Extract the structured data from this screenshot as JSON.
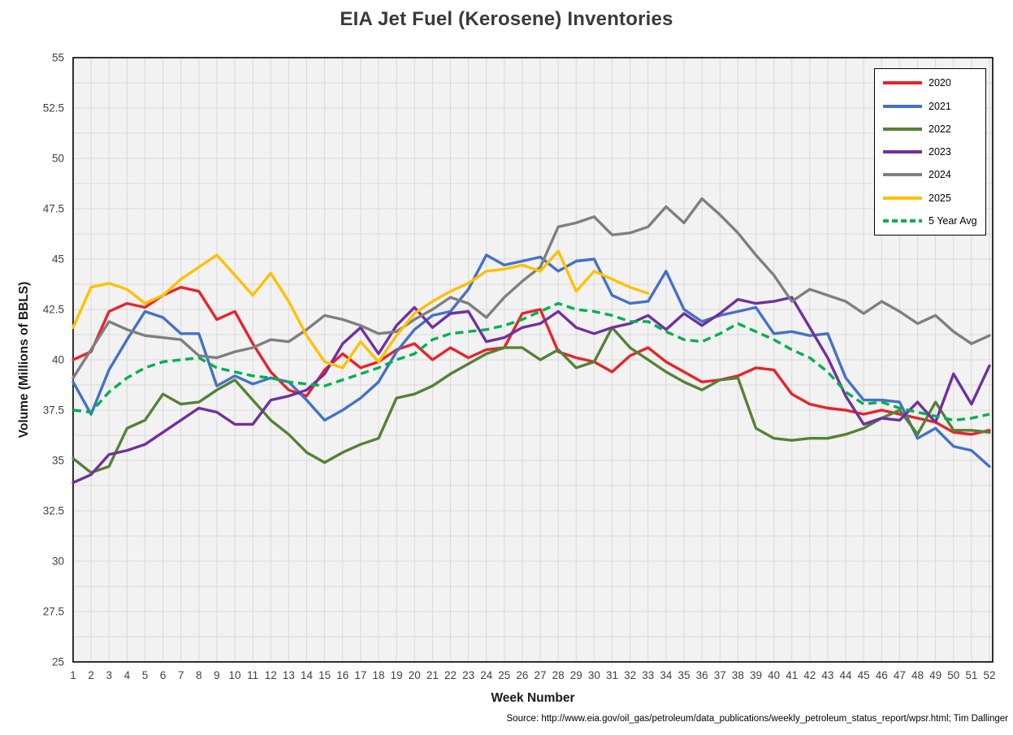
{
  "title": "EIA Jet Fuel (Kerosene) Inventories",
  "source_note": "Source: http://www.eia.gov/oil_gas/petroleum/data_publications/weekly_petroleum_status_report/wpsr.html; Tim Dallinger",
  "colors": {
    "plot_background": "#f2f2f2",
    "gridline": "#d9d9d9",
    "plot_border": "#000000",
    "tick_text": "#404040",
    "title_text": "#3a3a3a"
  },
  "chart_data": {
    "type": "line",
    "title": "EIA Jet Fuel (Kerosene) Inventories",
    "xlabel": "Week Number",
    "ylabel": "Volume (Millions of BBLS)",
    "ylim": [
      25,
      55
    ],
    "y_ticks": [
      25,
      27.5,
      30,
      32.5,
      35,
      37.5,
      40,
      42.5,
      45,
      47.5,
      50,
      52.5,
      55
    ],
    "minor_grid_step": 1.25,
    "grid": true,
    "legend_position": "top-right",
    "x": [
      1,
      2,
      3,
      4,
      5,
      6,
      7,
      8,
      9,
      10,
      11,
      12,
      13,
      14,
      15,
      16,
      17,
      18,
      19,
      20,
      21,
      22,
      23,
      24,
      25,
      26,
      27,
      28,
      29,
      30,
      31,
      32,
      33,
      34,
      35,
      36,
      37,
      38,
      39,
      40,
      41,
      42,
      43,
      44,
      45,
      46,
      47,
      48,
      49,
      50,
      51,
      52
    ],
    "series": [
      {
        "name": "2020",
        "color": "#e8232a",
        "dashed": false,
        "values": [
          40.0,
          40.4,
          42.4,
          42.8,
          42.6,
          43.2,
          43.6,
          43.4,
          42.0,
          42.4,
          40.8,
          39.4,
          38.5,
          38.2,
          39.5,
          40.3,
          39.6,
          39.9,
          40.5,
          40.8,
          40.0,
          40.6,
          40.1,
          40.5,
          40.6,
          42.3,
          42.5,
          40.4,
          40.1,
          39.9,
          39.4,
          40.2,
          40.6,
          39.9,
          39.4,
          38.9,
          39.0,
          39.2,
          39.6,
          39.5,
          38.3,
          37.8,
          37.6,
          37.5,
          37.3,
          37.5,
          37.3,
          37.1,
          36.9,
          36.4,
          36.3,
          36.5
        ]
      },
      {
        "name": "2021",
        "color": "#4472c4",
        "dashed": false,
        "values": [
          38.9,
          37.3,
          39.5,
          41.0,
          42.4,
          42.1,
          41.3,
          41.3,
          38.7,
          39.2,
          38.8,
          39.1,
          38.9,
          38.0,
          37.0,
          37.5,
          38.1,
          38.9,
          40.4,
          41.5,
          42.2,
          42.4,
          43.5,
          45.2,
          44.7,
          44.9,
          45.1,
          44.4,
          44.9,
          45.0,
          43.2,
          42.8,
          42.9,
          44.4,
          42.5,
          41.9,
          42.2,
          42.4,
          42.6,
          41.3,
          41.4,
          41.2,
          41.3,
          39.1,
          38.0,
          38.0,
          37.9,
          36.1,
          36.6,
          35.7,
          35.5,
          34.7
        ]
      },
      {
        "name": "2022",
        "color": "#548235",
        "dashed": false,
        "values": [
          35.1,
          34.4,
          34.7,
          36.6,
          37.0,
          38.3,
          37.8,
          37.9,
          38.5,
          39.0,
          38.0,
          37.0,
          36.3,
          35.4,
          34.9,
          35.4,
          35.8,
          36.1,
          38.1,
          38.3,
          38.7,
          39.3,
          39.8,
          40.3,
          40.6,
          40.6,
          40.0,
          40.5,
          39.6,
          39.9,
          41.6,
          40.6,
          40.0,
          39.4,
          38.9,
          38.5,
          39.0,
          39.1,
          36.6,
          36.1,
          36.0,
          36.1,
          36.1,
          36.3,
          36.6,
          37.1,
          37.5,
          36.3,
          37.9,
          36.5,
          36.5,
          36.4
        ]
      },
      {
        "name": "2023",
        "color": "#7030a0",
        "dashed": false,
        "values": [
          33.9,
          34.3,
          35.3,
          35.5,
          35.8,
          36.4,
          37.0,
          37.6,
          37.4,
          36.8,
          36.8,
          38.0,
          38.2,
          38.5,
          39.3,
          40.8,
          41.6,
          40.3,
          41.7,
          42.6,
          41.6,
          42.3,
          42.4,
          40.9,
          41.1,
          41.6,
          41.8,
          42.4,
          41.6,
          41.3,
          41.6,
          41.8,
          42.2,
          41.5,
          42.3,
          41.7,
          42.3,
          43.0,
          42.8,
          42.9,
          43.1,
          41.6,
          40.1,
          38.2,
          36.8,
          37.1,
          37.0,
          37.9,
          36.9,
          39.3,
          37.8,
          39.7
        ]
      },
      {
        "name": "2024",
        "color": "#7f7f7f",
        "dashed": false,
        "values": [
          39.1,
          40.5,
          41.9,
          41.5,
          41.2,
          41.1,
          41.0,
          40.2,
          40.1,
          40.4,
          40.6,
          41.0,
          40.9,
          41.5,
          42.2,
          42.0,
          41.7,
          41.3,
          41.4,
          42.0,
          42.5,
          43.1,
          42.8,
          42.1,
          43.1,
          43.9,
          44.6,
          46.6,
          46.8,
          47.1,
          46.2,
          46.3,
          46.6,
          47.6,
          46.8,
          48.0,
          47.2,
          46.3,
          45.2,
          44.2,
          42.9,
          43.5,
          43.2,
          42.9,
          42.3,
          42.9,
          42.4,
          41.8,
          42.2,
          41.4,
          40.8,
          41.2
        ]
      },
      {
        "name": "2025",
        "color": "#ffc000",
        "dashed": false,
        "values": [
          41.6,
          43.6,
          43.8,
          43.5,
          42.8,
          43.2,
          44.0,
          44.6,
          45.2,
          44.2,
          43.2,
          44.3,
          42.9,
          41.2,
          39.9,
          39.6,
          40.9,
          39.9,
          41.2,
          42.3,
          42.9,
          43.4,
          43.8,
          44.4,
          44.5,
          44.7,
          44.4,
          45.4,
          43.4,
          44.4,
          44.0,
          43.6,
          43.3
        ]
      },
      {
        "name": "5 Year Avg",
        "color": "#00b050",
        "dashed": true,
        "values": [
          37.5,
          37.4,
          38.4,
          39.1,
          39.6,
          39.9,
          40.0,
          40.1,
          39.6,
          39.4,
          39.2,
          39.1,
          38.9,
          38.8,
          38.7,
          39.0,
          39.3,
          39.6,
          40.0,
          40.3,
          41.0,
          41.3,
          41.4,
          41.5,
          41.7,
          42.0,
          42.4,
          42.8,
          42.5,
          42.4,
          42.2,
          41.9,
          41.9,
          41.4,
          41.0,
          40.9,
          41.3,
          41.8,
          41.4,
          41.0,
          40.5,
          40.1,
          39.4,
          38.4,
          37.8,
          37.9,
          37.6,
          37.4,
          37.2,
          37.0,
          37.1,
          37.3
        ]
      }
    ]
  }
}
